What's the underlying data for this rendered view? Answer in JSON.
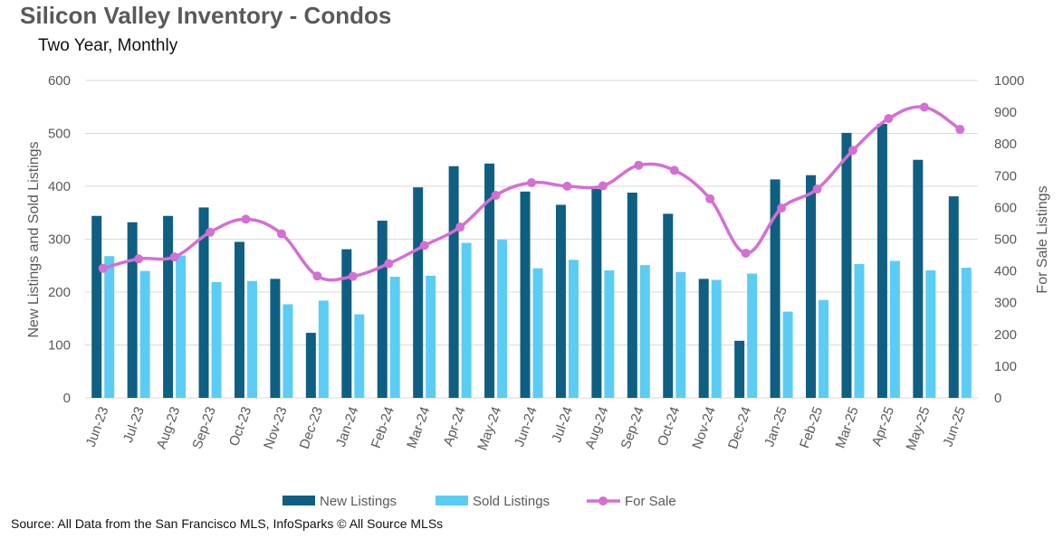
{
  "colors": {
    "new_listings": "#0f5f82",
    "sold_listings": "#5bcdf4",
    "for_sale": "#d46fd3",
    "grid": "#d9d9d9",
    "text": "#595959"
  },
  "footer": {
    "source": "Source: All Data from the San Francisco MLS, InfoSparks © All Source MLSs"
  },
  "chart_data": {
    "type": "bar",
    "title": "Silicon Valley Inventory - Condos",
    "subtitle": "Two Year, Monthly",
    "ylabel": "New Listings and Sold Listings",
    "y2label": "For Sale Listings",
    "xlabel": "",
    "ylim": [
      0,
      600
    ],
    "y2lim": [
      0,
      1000
    ],
    "yticks": [
      0,
      100,
      200,
      300,
      400,
      500,
      600
    ],
    "y2ticks": [
      0,
      100,
      200,
      300,
      400,
      500,
      600,
      700,
      800,
      900,
      1000
    ],
    "grid": true,
    "legend_position": "bottom",
    "categories": [
      "Jun-23",
      "Jul-23",
      "Aug-23",
      "Sep-23",
      "Oct-23",
      "Nov-23",
      "Dec-23",
      "Jan-24",
      "Feb-24",
      "Mar-24",
      "Apr-24",
      "May-24",
      "Jun-24",
      "Jul-24",
      "Aug-24",
      "Sep-24",
      "Oct-24",
      "Nov-24",
      "Dec-24",
      "Jan-25",
      "Feb-25",
      "Mar-25",
      "Apr-25",
      "May-25",
      "Jun-25"
    ],
    "series": [
      {
        "name": "New Listings",
        "type": "bar",
        "axis": "left",
        "values": [
          344,
          332,
          344,
          360,
          295,
          225,
          123,
          281,
          335,
          398,
          438,
          443,
          390,
          365,
          395,
          388,
          348,
          225,
          108,
          413,
          421,
          501,
          518,
          450,
          381
        ]
      },
      {
        "name": "Sold Listings",
        "type": "bar",
        "axis": "left",
        "values": [
          268,
          240,
          269,
          219,
          221,
          177,
          184,
          158,
          229,
          231,
          293,
          299,
          245,
          261,
          241,
          251,
          238,
          223,
          235,
          163,
          185,
          253,
          259,
          241,
          246
        ]
      },
      {
        "name": "For Sale",
        "type": "line",
        "axis": "right",
        "values": [
          408,
          438,
          444,
          522,
          563,
          517,
          384,
          383,
          423,
          480,
          538,
          638,
          678,
          667,
          668,
          733,
          717,
          627,
          456,
          598,
          658,
          780,
          880,
          916,
          846
        ]
      }
    ]
  }
}
